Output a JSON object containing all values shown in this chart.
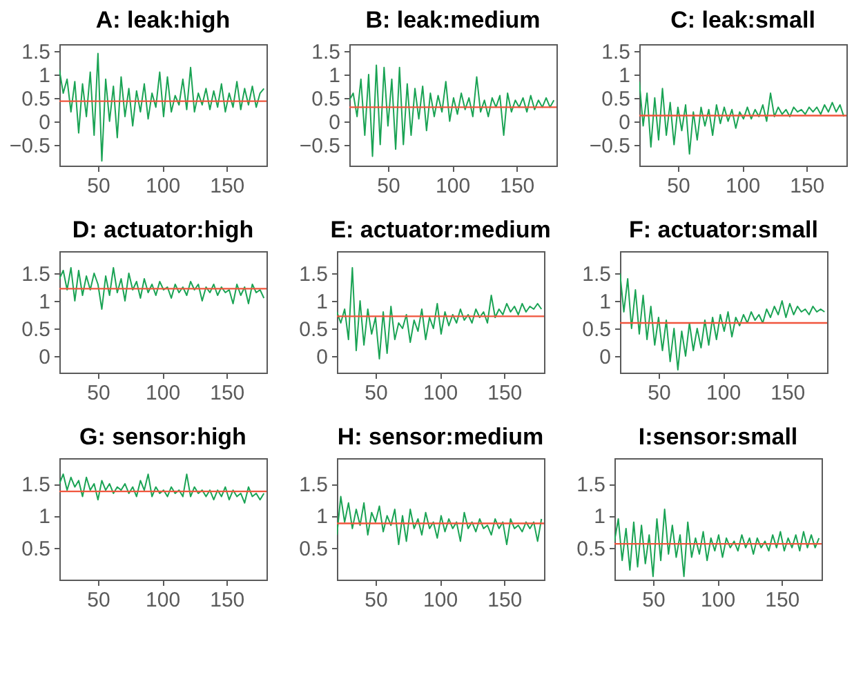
{
  "chart_data": [
    {
      "type": "line",
      "title": "A: leak:high",
      "xlim": [
        20,
        181
      ],
      "xticks": [
        50,
        100,
        150
      ],
      "ylim": [
        -0.95,
        1.65
      ],
      "yticks": [
        -0.5,
        0,
        0.5,
        1,
        1.5
      ],
      "x": [
        20,
        23,
        26,
        29,
        32,
        35,
        38,
        41,
        44,
        47,
        50,
        53,
        56,
        59,
        62,
        65,
        68,
        71,
        74,
        77,
        80,
        83,
        86,
        89,
        92,
        95,
        98,
        101,
        104,
        107,
        110,
        113,
        116,
        119,
        122,
        125,
        128,
        131,
        134,
        137,
        140,
        143,
        146,
        149,
        152,
        155,
        158,
        161,
        164,
        167,
        170,
        173,
        176,
        179
      ],
      "series": [
        {
          "color": "#1aa354",
          "values": [
            1.1,
            0.6,
            0.9,
            0.2,
            0.85,
            -0.25,
            0.8,
            0.1,
            1.05,
            -0.3,
            1.45,
            -0.85,
            0.9,
            0.0,
            0.75,
            -0.35,
            0.95,
            0.1,
            0.7,
            -0.1,
            0.65,
            0.2,
            0.8,
            0.05,
            0.6,
            0.3,
            1.05,
            0.1,
            0.95,
            0.2,
            0.55,
            0.35,
            0.9,
            0.25,
            1.15,
            0.2,
            0.6,
            0.35,
            0.7,
            0.25,
            0.65,
            0.3,
            0.8,
            0.2,
            0.6,
            0.3,
            0.85,
            0.25,
            0.7,
            0.35,
            0.75,
            0.3,
            0.6,
            0.7
          ]
        }
      ],
      "ref_lines": [
        {
          "axis": "y",
          "value": 0.43,
          "color": "#f0553c"
        }
      ]
    },
    {
      "type": "line",
      "title": "B: leak:medium",
      "xlim": [
        20,
        181
      ],
      "xticks": [
        50,
        100,
        150
      ],
      "ylim": [
        -0.95,
        1.65
      ],
      "yticks": [
        -0.5,
        0,
        0.5,
        1,
        1.5
      ],
      "x": [
        20,
        23,
        26,
        29,
        32,
        35,
        38,
        41,
        44,
        47,
        50,
        53,
        56,
        59,
        62,
        65,
        68,
        71,
        74,
        77,
        80,
        83,
        86,
        89,
        92,
        95,
        98,
        101,
        104,
        107,
        110,
        113,
        116,
        119,
        122,
        125,
        128,
        131,
        134,
        137,
        140,
        143,
        146,
        149,
        152,
        155,
        158,
        161,
        164,
        167,
        170,
        173,
        176,
        179
      ],
      "series": [
        {
          "color": "#1aa354",
          "values": [
            0.45,
            0.6,
            0.1,
            0.9,
            -0.3,
            1.0,
            -0.75,
            1.2,
            -0.5,
            1.15,
            -0.1,
            0.9,
            -0.6,
            1.15,
            -0.5,
            0.8,
            -0.3,
            0.7,
            0.05,
            0.75,
            -0.2,
            0.6,
            0.1,
            0.55,
            0.2,
            0.85,
            0.0,
            0.5,
            0.15,
            0.6,
            0.25,
            0.5,
            0.1,
            0.95,
            0.2,
            0.45,
            0.1,
            0.5,
            0.3,
            0.55,
            -0.3,
            0.6,
            0.2,
            0.45,
            0.3,
            0.5,
            0.2,
            0.55,
            0.25,
            0.45,
            0.3,
            0.5,
            0.3,
            0.45
          ]
        }
      ],
      "ref_lines": [
        {
          "axis": "y",
          "value": 0.3,
          "color": "#f0553c"
        }
      ]
    },
    {
      "type": "line",
      "title": "C: leak:small",
      "xlim": [
        20,
        181
      ],
      "xticks": [
        50,
        100,
        150
      ],
      "ylim": [
        -0.95,
        1.65
      ],
      "yticks": [
        -0.5,
        0,
        0.5,
        1,
        1.5
      ],
      "x": [
        20,
        23,
        26,
        29,
        32,
        35,
        38,
        41,
        44,
        47,
        50,
        53,
        56,
        59,
        62,
        65,
        68,
        71,
        74,
        77,
        80,
        83,
        86,
        89,
        92,
        95,
        98,
        101,
        104,
        107,
        110,
        113,
        116,
        119,
        122,
        125,
        128,
        131,
        134,
        137,
        140,
        143,
        146,
        149,
        152,
        155,
        158,
        161,
        164,
        167,
        170,
        173,
        176,
        179
      ],
      "series": [
        {
          "color": "#1aa354",
          "values": [
            0.85,
            -0.1,
            0.6,
            -0.55,
            0.5,
            -0.4,
            0.7,
            -0.3,
            0.4,
            -0.5,
            0.3,
            -0.2,
            0.35,
            -0.7,
            0.2,
            -0.4,
            0.3,
            -0.1,
            0.25,
            -0.3,
            0.35,
            -0.05,
            0.3,
            0.0,
            0.25,
            -0.15,
            0.2,
            0.05,
            0.3,
            0.05,
            0.25,
            0.1,
            0.35,
            0.0,
            0.6,
            0.1,
            0.3,
            0.15,
            0.25,
            0.1,
            0.3,
            0.2,
            0.25,
            0.15,
            0.3,
            0.2,
            0.3,
            0.15,
            0.35,
            0.2,
            0.4,
            0.2,
            0.35,
            0.1
          ]
        }
      ],
      "ref_lines": [
        {
          "axis": "y",
          "value": 0.12,
          "color": "#f0553c"
        }
      ]
    },
    {
      "type": "line",
      "title": "D: actuator:high",
      "xlim": [
        20,
        181
      ],
      "xticks": [
        50,
        100,
        150
      ],
      "ylim": [
        -0.3,
        1.9
      ],
      "yticks": [
        0,
        0.5,
        1,
        1.5
      ],
      "x": [
        20,
        23,
        26,
        29,
        32,
        35,
        38,
        41,
        44,
        47,
        50,
        53,
        56,
        59,
        62,
        65,
        68,
        71,
        74,
        77,
        80,
        83,
        86,
        89,
        92,
        95,
        98,
        101,
        104,
        107,
        110,
        113,
        116,
        119,
        122,
        125,
        128,
        131,
        134,
        137,
        140,
        143,
        146,
        149,
        152,
        155,
        158,
        161,
        164,
        167,
        170,
        173,
        176,
        179
      ],
      "series": [
        {
          "color": "#1aa354",
          "values": [
            1.4,
            1.55,
            1.2,
            1.6,
            1.0,
            1.55,
            1.1,
            1.45,
            1.2,
            1.5,
            1.3,
            0.85,
            1.45,
            1.1,
            1.6,
            1.15,
            1.4,
            1.0,
            1.5,
            1.2,
            1.35,
            1.05,
            1.4,
            1.15,
            1.3,
            1.1,
            1.35,
            1.2,
            1.25,
            1.05,
            1.3,
            1.15,
            1.25,
            1.1,
            1.35,
            1.2,
            1.3,
            1.0,
            1.25,
            1.15,
            1.3,
            1.1,
            1.25,
            1.15,
            1.2,
            0.95,
            1.3,
            1.1,
            1.25,
            0.95,
            1.3,
            1.15,
            1.2,
            1.05
          ]
        }
      ],
      "ref_lines": [
        {
          "axis": "y",
          "value": 1.22,
          "color": "#f0553c"
        }
      ]
    },
    {
      "type": "line",
      "title": "E: actuator:medium",
      "xlim": [
        20,
        181
      ],
      "xticks": [
        50,
        100,
        150
      ],
      "ylim": [
        -0.3,
        1.9
      ],
      "yticks": [
        0,
        0.5,
        1,
        1.5
      ],
      "x": [
        20,
        23,
        26,
        29,
        32,
        35,
        38,
        41,
        44,
        47,
        50,
        53,
        56,
        59,
        62,
        65,
        68,
        71,
        74,
        77,
        80,
        83,
        86,
        89,
        92,
        95,
        98,
        101,
        104,
        107,
        110,
        113,
        116,
        119,
        122,
        125,
        128,
        131,
        134,
        137,
        140,
        143,
        146,
        149,
        152,
        155,
        158,
        161,
        164,
        167,
        170,
        173,
        176,
        179
      ],
      "series": [
        {
          "color": "#1aa354",
          "values": [
            0.8,
            0.6,
            0.85,
            0.3,
            1.6,
            0.1,
            1.0,
            0.2,
            0.85,
            0.4,
            0.7,
            -0.05,
            0.8,
            0.05,
            0.9,
            0.3,
            0.6,
            0.5,
            0.75,
            0.25,
            0.65,
            0.45,
            0.85,
            0.3,
            0.7,
            0.5,
            0.95,
            0.4,
            0.8,
            0.55,
            0.75,
            0.6,
            0.85,
            0.65,
            0.75,
            0.6,
            0.85,
            0.7,
            0.8,
            0.6,
            1.1,
            0.7,
            0.85,
            0.75,
            0.95,
            0.8,
            0.9,
            0.75,
            0.95,
            0.8,
            0.9,
            0.85,
            0.95,
            0.85
          ]
        }
      ],
      "ref_lines": [
        {
          "axis": "y",
          "value": 0.72,
          "color": "#f0553c"
        }
      ]
    },
    {
      "type": "line",
      "title": "F: actuator:small",
      "xlim": [
        20,
        181
      ],
      "xticks": [
        50,
        100,
        150
      ],
      "ylim": [
        -0.3,
        1.9
      ],
      "yticks": [
        0,
        0.5,
        1,
        1.5
      ],
      "x": [
        20,
        23,
        26,
        29,
        32,
        35,
        38,
        41,
        44,
        47,
        50,
        53,
        56,
        59,
        62,
        65,
        68,
        71,
        74,
        77,
        80,
        83,
        86,
        89,
        92,
        95,
        98,
        101,
        104,
        107,
        110,
        113,
        116,
        119,
        122,
        125,
        128,
        131,
        134,
        137,
        140,
        143,
        146,
        149,
        152,
        155,
        158,
        161,
        164,
        167,
        170,
        173,
        176,
        179
      ],
      "series": [
        {
          "color": "#1aa354",
          "values": [
            1.5,
            0.8,
            1.4,
            0.5,
            1.2,
            0.4,
            1.1,
            0.3,
            0.9,
            0.2,
            0.7,
            0.1,
            0.65,
            -0.1,
            0.5,
            -0.25,
            0.45,
            0.0,
            0.6,
            0.1,
            0.5,
            0.15,
            0.65,
            0.2,
            0.7,
            0.3,
            0.75,
            0.45,
            0.8,
            0.35,
            0.7,
            0.55,
            0.75,
            0.6,
            0.8,
            0.65,
            0.75,
            0.6,
            0.85,
            0.7,
            0.9,
            0.75,
            1.0,
            0.7,
            0.95,
            0.75,
            0.9,
            0.8,
            0.85,
            0.75,
            0.9,
            0.8,
            0.85,
            0.8
          ]
        }
      ],
      "ref_lines": [
        {
          "axis": "y",
          "value": 0.6,
          "color": "#f0553c"
        }
      ]
    },
    {
      "type": "line",
      "title": "G: sensor:high",
      "xlim": [
        20,
        181
      ],
      "xticks": [
        50,
        100,
        150
      ],
      "ylim": [
        0,
        1.9
      ],
      "yticks": [
        0.5,
        1,
        1.5
      ],
      "x": [
        20,
        23,
        26,
        29,
        32,
        35,
        38,
        41,
        44,
        47,
        50,
        53,
        56,
        59,
        62,
        65,
        68,
        71,
        74,
        77,
        80,
        83,
        86,
        89,
        92,
        95,
        98,
        101,
        104,
        107,
        110,
        113,
        116,
        119,
        122,
        125,
        128,
        131,
        134,
        137,
        140,
        143,
        146,
        149,
        152,
        155,
        158,
        161,
        164,
        167,
        170,
        173,
        176,
        179
      ],
      "series": [
        {
          "color": "#1aa354",
          "values": [
            1.5,
            1.65,
            1.4,
            1.6,
            1.45,
            1.55,
            1.3,
            1.6,
            1.4,
            1.5,
            1.25,
            1.55,
            1.4,
            1.5,
            1.35,
            1.45,
            1.4,
            1.5,
            1.35,
            1.45,
            1.3,
            1.55,
            1.4,
            1.65,
            1.3,
            1.45,
            1.35,
            1.4,
            1.3,
            1.45,
            1.35,
            1.4,
            1.3,
            1.65,
            1.3,
            1.45,
            1.35,
            1.4,
            1.3,
            1.4,
            1.25,
            1.4,
            1.3,
            1.45,
            1.25,
            1.4,
            1.3,
            1.35,
            1.2,
            1.45,
            1.3,
            1.35,
            1.25,
            1.35
          ]
        }
      ],
      "ref_lines": [
        {
          "axis": "y",
          "value": 1.38,
          "color": "#f0553c"
        }
      ]
    },
    {
      "type": "line",
      "title": "H: sensor:medium",
      "xlim": [
        20,
        181
      ],
      "xticks": [
        50,
        100,
        150
      ],
      "ylim": [
        0,
        1.9
      ],
      "yticks": [
        0.5,
        1,
        1.5
      ],
      "x": [
        20,
        23,
        26,
        29,
        32,
        35,
        38,
        41,
        44,
        47,
        50,
        53,
        56,
        59,
        62,
        65,
        68,
        71,
        74,
        77,
        80,
        83,
        86,
        89,
        92,
        95,
        98,
        101,
        104,
        107,
        110,
        113,
        116,
        119,
        122,
        125,
        128,
        131,
        134,
        137,
        140,
        143,
        146,
        149,
        152,
        155,
        158,
        161,
        164,
        167,
        170,
        173,
        176,
        179
      ],
      "series": [
        {
          "color": "#1aa354",
          "values": [
            0.7,
            1.3,
            0.9,
            1.2,
            0.8,
            1.1,
            0.85,
            1.2,
            0.7,
            1.05,
            0.9,
            1.15,
            0.75,
            1.0,
            0.85,
            1.1,
            0.55,
            1.0,
            0.6,
            1.1,
            0.8,
            0.95,
            0.7,
            1.05,
            0.8,
            0.9,
            0.65,
            1.0,
            0.75,
            0.95,
            0.8,
            0.9,
            0.6,
            1.05,
            0.8,
            0.9,
            0.75,
            0.95,
            0.8,
            0.85,
            0.7,
            0.95,
            0.8,
            0.9,
            0.55,
            0.95,
            0.8,
            0.85,
            0.75,
            0.9,
            0.8,
            0.9,
            0.6,
            0.95
          ]
        }
      ],
      "ref_lines": [
        {
          "axis": "y",
          "value": 0.88,
          "color": "#f0553c"
        }
      ]
    },
    {
      "type": "line",
      "title": "I:sensor:small",
      "xlim": [
        20,
        181
      ],
      "xticks": [
        50,
        100,
        150
      ],
      "ylim": [
        0,
        1.9
      ],
      "yticks": [
        0.5,
        1,
        1.5
      ],
      "x": [
        20,
        23,
        26,
        29,
        32,
        35,
        38,
        41,
        44,
        47,
        50,
        53,
        56,
        59,
        62,
        65,
        68,
        71,
        74,
        77,
        80,
        83,
        86,
        89,
        92,
        95,
        98,
        101,
        104,
        107,
        110,
        113,
        116,
        119,
        122,
        125,
        128,
        131,
        134,
        137,
        140,
        143,
        146,
        149,
        152,
        155,
        158,
        161,
        164,
        167,
        170,
        173,
        176,
        179
      ],
      "series": [
        {
          "color": "#1aa354",
          "values": [
            0.6,
            0.95,
            0.3,
            0.8,
            0.15,
            0.9,
            0.2,
            0.85,
            0.25,
            0.7,
            0.05,
            0.95,
            0.3,
            1.1,
            0.4,
            0.85,
            0.35,
            0.7,
            0.05,
            0.9,
            0.35,
            0.65,
            0.4,
            0.75,
            0.3,
            0.65,
            0.45,
            0.7,
            0.35,
            0.65,
            0.5,
            0.6,
            0.45,
            0.7,
            0.5,
            0.65,
            0.4,
            0.65,
            0.5,
            0.6,
            0.45,
            0.7,
            0.5,
            0.75,
            0.45,
            0.65,
            0.5,
            0.7,
            0.45,
            0.75,
            0.5,
            0.7,
            0.5,
            0.65
          ]
        }
      ],
      "ref_lines": [
        {
          "axis": "y",
          "value": 0.56,
          "color": "#f0553c"
        }
      ]
    }
  ]
}
